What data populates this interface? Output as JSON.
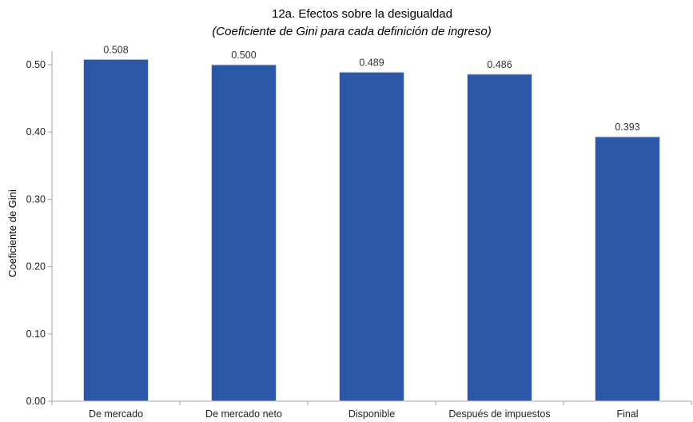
{
  "colors": {
    "bar_fill": "#2B59A8",
    "bar_stroke": "#D9D9D9",
    "axis": "#A6A6A6",
    "background": "#FFFFFF"
  },
  "chart_data": {
    "type": "bar",
    "title": "12a. Efectos sobre la desigualdad",
    "subtitle": "(Coeficiente de Gini para cada definición de ingreso)",
    "xlabel": "",
    "ylabel": "Coeficiente de Gini",
    "categories": [
      "De mercado",
      "De mercado neto",
      "Disponible",
      "Después de impuestos",
      "Final"
    ],
    "values": [
      0.508,
      0.5,
      0.489,
      0.486,
      0.393
    ],
    "value_labels": [
      "0.508",
      "0.500",
      "0.489",
      "0.486",
      "0.393"
    ],
    "ylim": [
      0,
      0.5
    ],
    "yticks": [
      0,
      0.1,
      0.2,
      0.3,
      0.4,
      0.5
    ],
    "ytick_labels": [
      "0.00",
      "0.10",
      "0.20",
      "0.30",
      "0.40",
      "0.50"
    ],
    "grid": false,
    "legend": "none"
  }
}
